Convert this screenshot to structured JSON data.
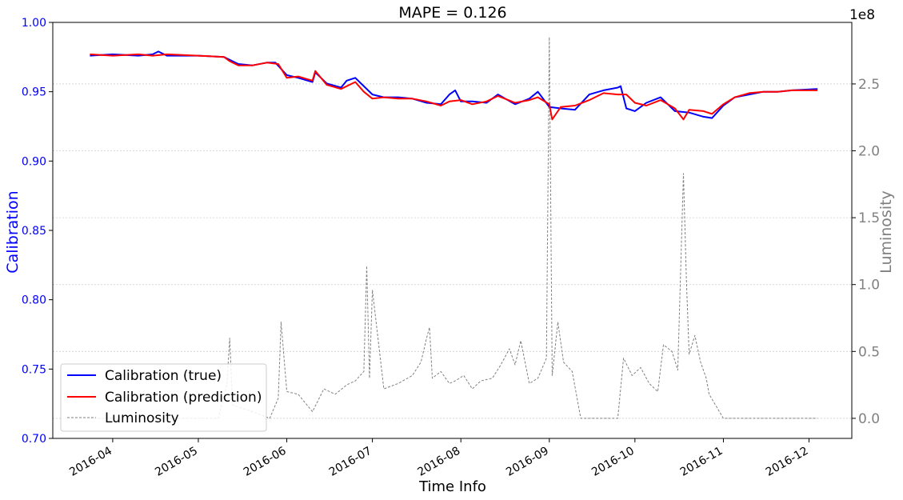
{
  "chart_data": {
    "type": "line",
    "title": "MAPE = 0.126",
    "xlabel": "Time Info",
    "ylabel_left": "Calibration",
    "ylabel_right": "Luminosity",
    "right_axis_multiplier": "1e8",
    "ylim_left": [
      0.7,
      1.0
    ],
    "ylim_right": [
      -15000000,
      296000000
    ],
    "xlim": [
      "2016-03-11",
      "2016-12-16"
    ],
    "x_ticks": [
      "2016-04",
      "2016-05",
      "2016-06",
      "2016-07",
      "2016-08",
      "2016-09",
      "2016-10",
      "2016-11",
      "2016-12"
    ],
    "y_ticks_left": [
      "0.70",
      "0.75",
      "0.80",
      "0.85",
      "0.90",
      "0.95",
      "1.00"
    ],
    "y_ticks_right": [
      "0.0",
      "0.5",
      "1.0",
      "1.5",
      "2.0",
      "2.5"
    ],
    "y_ticks_right_values": [
      0,
      50000000,
      100000000,
      150000000,
      200000000,
      250000000
    ],
    "grid": "horizontal-dotted",
    "legend_position": "bottom-left",
    "colors": {
      "true": "#0000ff",
      "prediction": "#ff0000",
      "luminosity": "#808080",
      "left_axis": "#0000ff",
      "right_axis": "#808080"
    },
    "series": [
      {
        "name": "Calibration (true)",
        "axis": "left",
        "x": [
          "2016-03-24",
          "2016-04-01",
          "2016-04-10",
          "2016-04-15",
          "2016-04-17",
          "2016-04-20",
          "2016-05-01",
          "2016-05-10",
          "2016-05-15",
          "2016-05-20",
          "2016-05-25",
          "2016-05-28",
          "2016-06-01",
          "2016-06-05",
          "2016-06-10",
          "2016-06-11",
          "2016-06-15",
          "2016-06-20",
          "2016-06-22",
          "2016-06-25",
          "2016-07-01",
          "2016-07-05",
          "2016-07-10",
          "2016-07-15",
          "2016-07-20",
          "2016-07-25",
          "2016-07-28",
          "2016-07-30",
          "2016-08-01",
          "2016-08-05",
          "2016-08-10",
          "2016-08-14",
          "2016-08-20",
          "2016-08-25",
          "2016-08-28",
          "2016-09-01",
          "2016-09-05",
          "2016-09-10",
          "2016-09-15",
          "2016-09-20",
          "2016-09-25",
          "2016-09-26",
          "2016-09-28",
          "2016-10-01",
          "2016-10-05",
          "2016-10-10",
          "2016-10-15",
          "2016-10-20",
          "2016-10-25",
          "2016-10-28",
          "2016-11-01",
          "2016-11-05",
          "2016-11-10",
          "2016-11-15",
          "2016-11-20",
          "2016-11-25",
          "2016-12-04"
        ],
        "y": [
          0.976,
          0.977,
          0.976,
          0.977,
          0.979,
          0.976,
          0.976,
          0.975,
          0.97,
          0.969,
          0.971,
          0.971,
          0.962,
          0.96,
          0.957,
          0.964,
          0.956,
          0.953,
          0.958,
          0.96,
          0.948,
          0.946,
          0.946,
          0.945,
          0.942,
          0.941,
          0.948,
          0.951,
          0.943,
          0.943,
          0.942,
          0.948,
          0.941,
          0.945,
          0.95,
          0.939,
          0.938,
          0.937,
          0.948,
          0.951,
          0.953,
          0.954,
          0.938,
          0.936,
          0.942,
          0.946,
          0.936,
          0.935,
          0.932,
          0.931,
          0.94,
          0.946,
          0.948,
          0.95,
          0.95,
          0.951,
          0.952
        ]
      },
      {
        "name": "Calibration (prediction)",
        "axis": "left",
        "x": [
          "2016-03-24",
          "2016-04-01",
          "2016-04-10",
          "2016-04-15",
          "2016-04-20",
          "2016-05-01",
          "2016-05-10",
          "2016-05-12",
          "2016-05-15",
          "2016-05-20",
          "2016-05-25",
          "2016-05-29",
          "2016-06-01",
          "2016-06-05",
          "2016-06-10",
          "2016-06-11",
          "2016-06-15",
          "2016-06-20",
          "2016-06-25",
          "2016-06-28",
          "2016-07-01",
          "2016-07-05",
          "2016-07-10",
          "2016-07-15",
          "2016-07-20",
          "2016-07-25",
          "2016-07-28",
          "2016-08-01",
          "2016-08-05",
          "2016-08-10",
          "2016-08-14",
          "2016-08-20",
          "2016-08-25",
          "2016-08-28",
          "2016-09-01",
          "2016-09-02",
          "2016-09-05",
          "2016-09-10",
          "2016-09-15",
          "2016-09-20",
          "2016-09-25",
          "2016-09-28",
          "2016-10-01",
          "2016-10-05",
          "2016-10-10",
          "2016-10-15",
          "2016-10-18",
          "2016-10-20",
          "2016-10-25",
          "2016-10-28",
          "2016-11-01",
          "2016-11-05",
          "2016-11-10",
          "2016-11-15",
          "2016-11-20",
          "2016-11-25",
          "2016-12-04"
        ],
        "y": [
          0.977,
          0.976,
          0.977,
          0.976,
          0.977,
          0.976,
          0.975,
          0.972,
          0.969,
          0.969,
          0.971,
          0.97,
          0.96,
          0.961,
          0.958,
          0.965,
          0.955,
          0.952,
          0.957,
          0.95,
          0.945,
          0.946,
          0.945,
          0.945,
          0.943,
          0.94,
          0.943,
          0.944,
          0.941,
          0.943,
          0.947,
          0.942,
          0.944,
          0.946,
          0.941,
          0.93,
          0.939,
          0.94,
          0.944,
          0.949,
          0.948,
          0.948,
          0.942,
          0.94,
          0.944,
          0.938,
          0.93,
          0.937,
          0.936,
          0.934,
          0.941,
          0.946,
          0.949,
          0.95,
          0.95,
          0.951,
          0.951
        ]
      },
      {
        "name": "Luminosity",
        "axis": "right",
        "x": [
          "2016-03-24",
          "2016-05-08",
          "2016-05-11",
          "2016-05-12",
          "2016-05-13",
          "2016-05-20",
          "2016-05-26",
          "2016-05-29",
          "2016-05-30",
          "2016-06-01",
          "2016-06-05",
          "2016-06-10",
          "2016-06-14",
          "2016-06-18",
          "2016-06-22",
          "2016-06-25",
          "2016-06-28",
          "2016-06-29",
          "2016-06-30",
          "2016-07-01",
          "2016-07-05",
          "2016-07-10",
          "2016-07-15",
          "2016-07-18",
          "2016-07-20",
          "2016-07-21",
          "2016-07-22",
          "2016-07-25",
          "2016-07-28",
          "2016-07-30",
          "2016-08-02",
          "2016-08-05",
          "2016-08-08",
          "2016-08-12",
          "2016-08-15",
          "2016-08-18",
          "2016-08-20",
          "2016-08-22",
          "2016-08-25",
          "2016-08-28",
          "2016-08-31",
          "2016-09-01",
          "2016-09-02",
          "2016-09-04",
          "2016-09-06",
          "2016-09-09",
          "2016-09-12",
          "2016-09-25",
          "2016-09-27",
          "2016-09-30",
          "2016-10-03",
          "2016-10-06",
          "2016-10-09",
          "2016-10-11",
          "2016-10-14",
          "2016-10-16",
          "2016-10-18",
          "2016-10-19",
          "2016-10-20",
          "2016-10-22",
          "2016-10-24",
          "2016-10-26",
          "2016-10-27",
          "2016-11-01",
          "2016-12-04"
        ],
        "y": [
          0,
          0,
          25000000,
          60000000,
          10000000,
          5000000,
          0,
          15000000,
          72000000,
          20000000,
          18000000,
          5000000,
          22000000,
          18000000,
          25000000,
          28000000,
          35000000,
          114000000,
          30000000,
          96000000,
          22000000,
          26000000,
          32000000,
          42000000,
          60000000,
          68000000,
          30000000,
          35000000,
          26000000,
          28000000,
          32000000,
          22000000,
          28000000,
          30000000,
          40000000,
          52000000,
          40000000,
          58000000,
          26000000,
          30000000,
          45000000,
          285000000,
          32000000,
          72000000,
          42000000,
          35000000,
          0,
          0,
          45000000,
          32000000,
          38000000,
          26000000,
          20000000,
          55000000,
          50000000,
          36000000,
          183000000,
          105000000,
          48000000,
          62000000,
          42000000,
          30000000,
          18000000,
          0,
          0
        ]
      }
    ],
    "legend": [
      "Calibration (true)",
      "Calibration (prediction)",
      "Luminosity"
    ]
  }
}
